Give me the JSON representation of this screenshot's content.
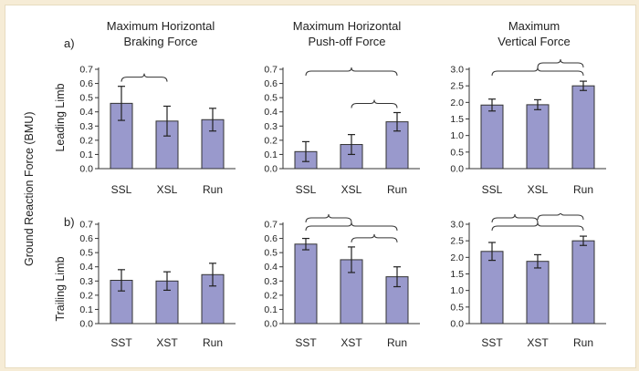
{
  "figure": {
    "y_axis_label": "Ground Reaction Force (BMU)",
    "row_a": {
      "letter": "a)",
      "limb": "Leading Limb"
    },
    "row_b": {
      "letter": "b)",
      "limb": "Trailing Limb"
    },
    "titles": [
      {
        "line1": "Maximum Horizontal",
        "line2": "Braking Force"
      },
      {
        "line1": "Maximum Horizontal",
        "line2": "Push-off Force"
      },
      {
        "line1": "Maximum",
        "line2": "Vertical Force"
      }
    ]
  },
  "colors": {
    "bar": "#9999cc",
    "background": "#f6ecd6"
  },
  "chart_data": [
    {
      "type": "bar",
      "id": "a1",
      "categories": [
        "SSL",
        "XSL",
        "Run"
      ],
      "values": [
        0.46,
        0.335,
        0.345
      ],
      "errors": [
        0.12,
        0.105,
        0.08
      ],
      "ylim": [
        0,
        0.7
      ],
      "yticks": [
        "0.0",
        "0.1",
        "0.2",
        "0.3",
        "0.4",
        "0.5",
        "0.6",
        "0.7"
      ],
      "brackets": [
        [
          0,
          1
        ]
      ]
    },
    {
      "type": "bar",
      "id": "a2",
      "categories": [
        "SSL",
        "XSL",
        "Run"
      ],
      "values": [
        0.12,
        0.17,
        0.33
      ],
      "errors": [
        0.07,
        0.07,
        0.065
      ],
      "ylim": [
        0,
        0.7
      ],
      "yticks": [
        "0.0",
        "0.1",
        "0.2",
        "0.3",
        "0.4",
        "0.5",
        "0.6",
        "0.7"
      ],
      "brackets": [
        [
          0,
          2
        ],
        [
          1,
          2
        ]
      ]
    },
    {
      "type": "bar",
      "id": "a3",
      "categories": [
        "SSL",
        "XSL",
        "Run"
      ],
      "values": [
        1.92,
        1.93,
        2.5
      ],
      "errors": [
        0.18,
        0.15,
        0.14
      ],
      "ylim": [
        0,
        3.0
      ],
      "yticks": [
        "0.0",
        "0.5",
        "1.0",
        "1.5",
        "2.0",
        "2.5",
        "3.0"
      ],
      "brackets": [
        [
          0,
          2
        ],
        [
          1,
          2
        ]
      ]
    },
    {
      "type": "bar",
      "id": "b1",
      "categories": [
        "SST",
        "XST",
        "Run"
      ],
      "values": [
        0.305,
        0.3,
        0.345
      ],
      "errors": [
        0.075,
        0.065,
        0.08
      ],
      "ylim": [
        0,
        0.7
      ],
      "yticks": [
        "0.0",
        "0.1",
        "0.2",
        "0.3",
        "0.4",
        "0.5",
        "0.6",
        "0.7"
      ],
      "brackets": []
    },
    {
      "type": "bar",
      "id": "b2",
      "categories": [
        "SST",
        "XST",
        "Run"
      ],
      "values": [
        0.56,
        0.45,
        0.33
      ],
      "errors": [
        0.04,
        0.09,
        0.07
      ],
      "ylim": [
        0,
        0.7
      ],
      "yticks": [
        "0.0",
        "0.1",
        "0.2",
        "0.3",
        "0.4",
        "0.5",
        "0.6",
        "0.7"
      ],
      "brackets": [
        [
          0,
          2
        ],
        [
          0,
          1
        ],
        [
          1,
          2
        ]
      ]
    },
    {
      "type": "bar",
      "id": "b3",
      "categories": [
        "SST",
        "XST",
        "Run"
      ],
      "values": [
        2.18,
        1.88,
        2.5
      ],
      "errors": [
        0.27,
        0.2,
        0.14
      ],
      "ylim": [
        0,
        3.0
      ],
      "yticks": [
        "0.0",
        "0.5",
        "1.0",
        "1.5",
        "2.0",
        "2.5",
        "3.0"
      ],
      "brackets": [
        [
          0,
          2
        ],
        [
          0,
          1
        ],
        [
          1,
          2
        ]
      ]
    }
  ]
}
